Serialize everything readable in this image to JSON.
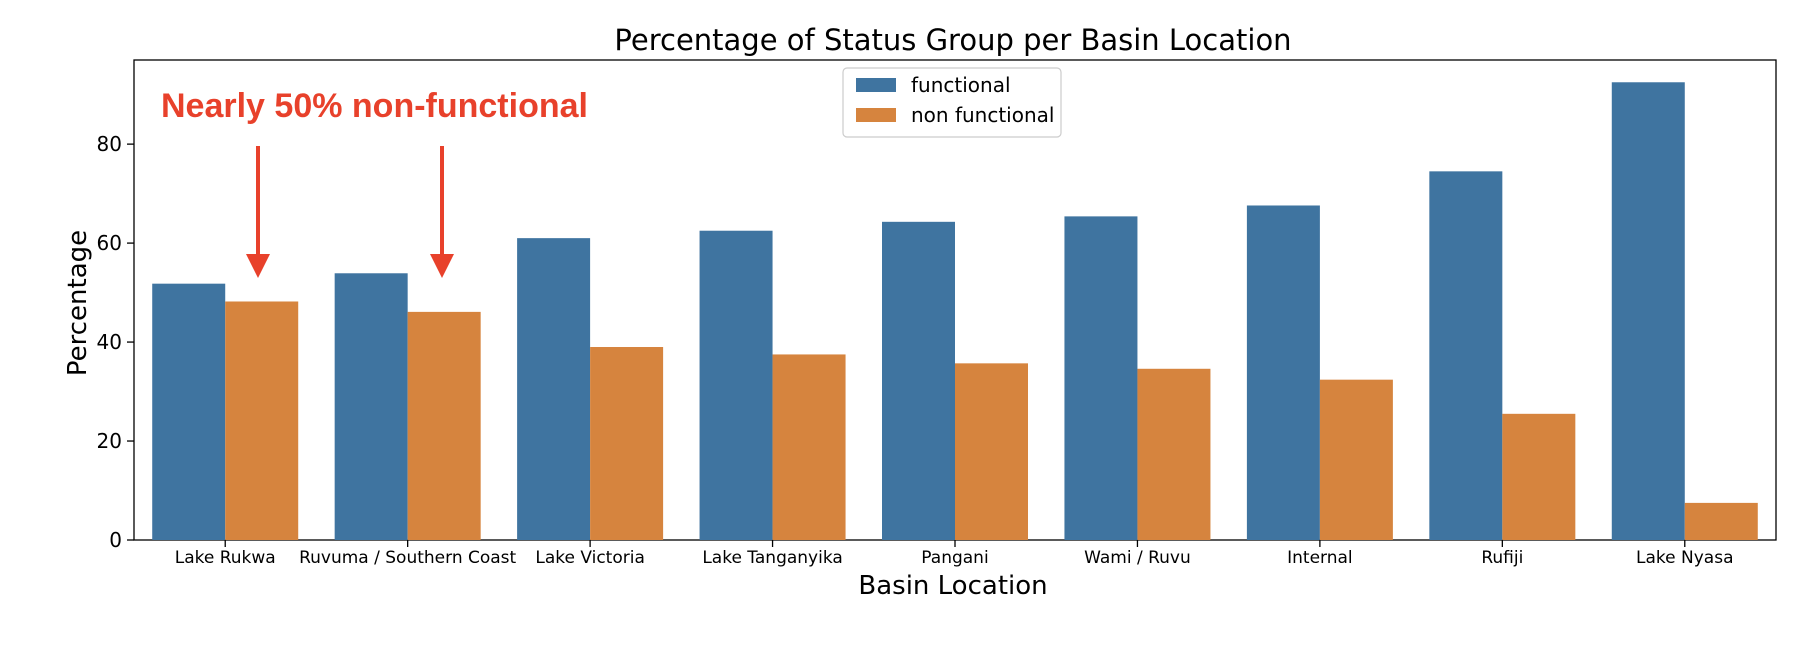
{
  "chart_data": {
    "type": "bar",
    "title": "Percentage of Status Group per Basin Location",
    "xlabel": "Basin Location",
    "ylabel": "Percentage",
    "ylim": [
      0,
      97
    ],
    "yticks": [
      "0",
      "20",
      "40",
      "60",
      "80"
    ],
    "categories": [
      "Lake Rukwa",
      "Ruvuma / Southern Coast",
      "Lake Victoria",
      "Lake Tanganyika",
      "Pangani",
      "Wami / Ruvu",
      "Internal",
      "Rufiji",
      "Lake Nyasa"
    ],
    "series": [
      {
        "name": "functional",
        "color": "#3f74a0",
        "values": [
          51.8,
          53.9,
          61.0,
          62.5,
          64.3,
          65.4,
          67.6,
          74.5,
          92.5
        ]
      },
      {
        "name": "non functional",
        "color": "#d6843e",
        "values": [
          48.2,
          46.1,
          39.0,
          37.5,
          35.7,
          34.6,
          32.4,
          25.5,
          7.5
        ]
      }
    ],
    "legend_position": "top-center",
    "grid": false,
    "annotation": {
      "text": "Nearly 50% non-functional",
      "color": "#e8412b",
      "arrow_targets": [
        "Lake Rukwa",
        "Ruvuma / Southern Coast"
      ]
    }
  }
}
